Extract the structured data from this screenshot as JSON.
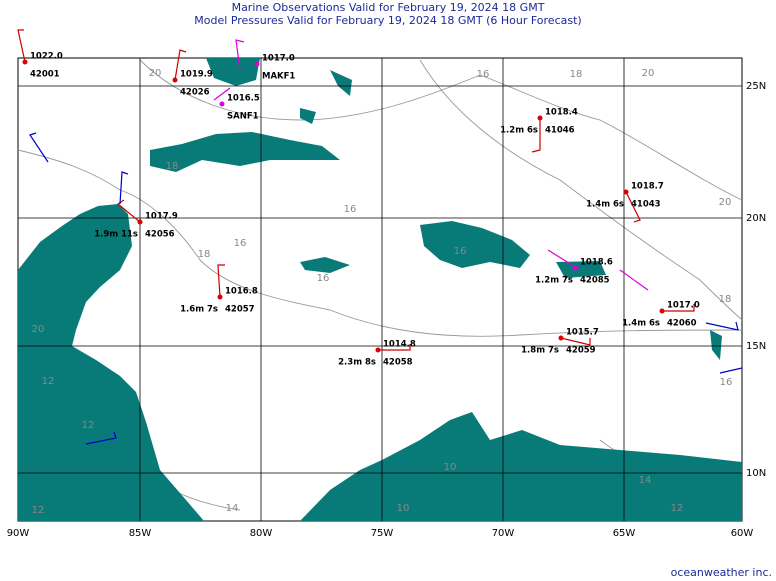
{
  "header": {
    "title": "Marine Observations Valid for February 19, 2024 18 GMT",
    "subtitle": "Model Pressures Valid for February 19, 2024 18 GMT (6 Hour Forecast)"
  },
  "lon_labels": [
    "90W",
    "85W",
    "80W",
    "75W",
    "70W",
    "65W",
    "60W"
  ],
  "lat_labels": [
    "25N",
    "20N",
    "15N",
    "10N"
  ],
  "stations": [
    {
      "pressure": "1022.0",
      "id": "42001"
    },
    {
      "pressure": "1019.9",
      "id": "42026"
    },
    {
      "pressure": "1018.4",
      "wave": "1.2m 6s",
      "id": "41046"
    },
    {
      "pressure": "1018.7",
      "wave": "1.4m 6s",
      "id": "41043"
    },
    {
      "pressure": "1017.9",
      "wave": "1.9m 11s",
      "id": "42056"
    },
    {
      "pressure": "1016.8",
      "wave": "1.6m 7s",
      "id": "42057"
    },
    {
      "pressure": "1014.8",
      "wave": "2.3m 8s",
      "id": "42058"
    },
    {
      "pressure": "1015.7",
      "wave": "1.8m 7s",
      "id": "42059"
    },
    {
      "pressure": "1017.0",
      "wave": "1.4m 6s",
      "id": "42060"
    },
    {
      "pressure": "1018.6",
      "wave": "1.2m 7s",
      "id": "42085"
    },
    {
      "pressure": "1017.0",
      "id": "MAKF1"
    },
    {
      "pressure": "1016.5",
      "id": "SANF1"
    }
  ],
  "contour_labels": [
    "20",
    "16",
    "18",
    "20",
    "18",
    "16",
    "18",
    "16",
    "16",
    "16",
    "20",
    "18",
    "16",
    "20",
    "12",
    "12",
    "12",
    "14",
    "10",
    "12",
    "14",
    "10"
  ],
  "footer": "oceanweather inc."
}
